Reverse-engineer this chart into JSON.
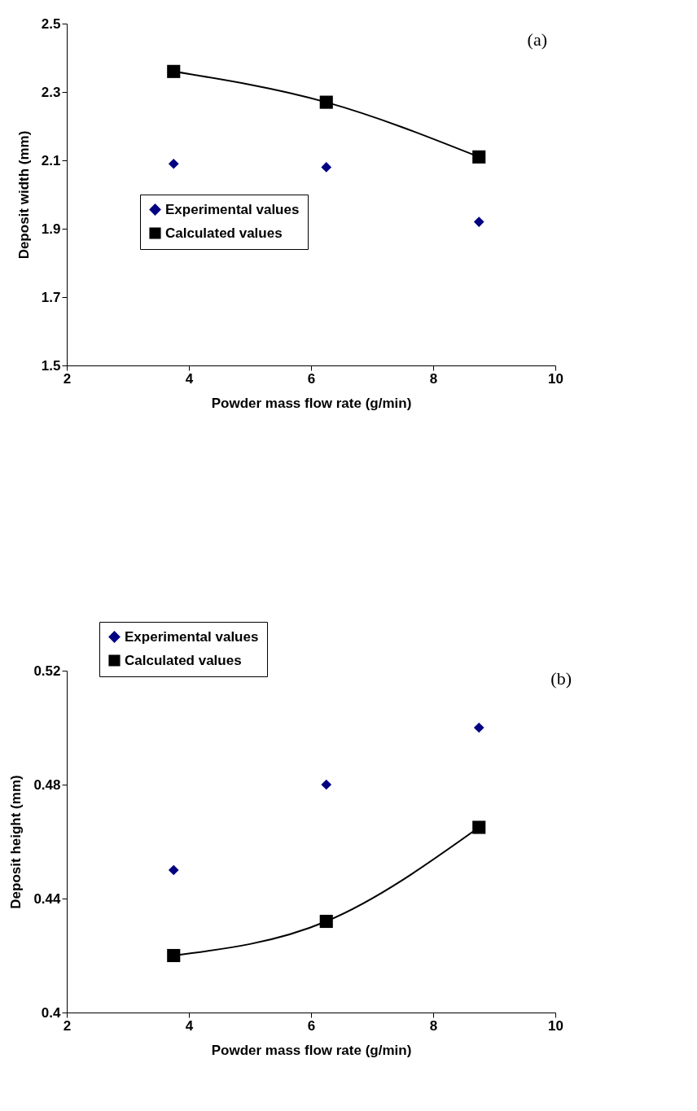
{
  "chart_data": [
    {
      "type": "scatter",
      "xlabel": "Powder mass flow rate (g/min)",
      "ylabel": "Deposit width (mm)",
      "annotations": [
        "(a)"
      ],
      "x": [
        3.75,
        6.25,
        8.75
      ],
      "xlim": [
        2,
        10
      ],
      "xticks": [
        2,
        4,
        6,
        8,
        10
      ],
      "ylim": [
        1.5,
        2.5
      ],
      "yticks": [
        1.5,
        1.7,
        1.9,
        2.1,
        2.3,
        2.5
      ],
      "legend": "left",
      "series": [
        {
          "name": "Experimental values",
          "marker": "diamond",
          "color": "#000080",
          "values": [
            2.09,
            2.08,
            1.92
          ]
        },
        {
          "name": "Calculated values",
          "type": "line",
          "marker": "square",
          "line_style": "solid",
          "color": "#000000",
          "values": [
            2.36,
            2.27,
            2.11
          ]
        }
      ]
    },
    {
      "type": "scatter",
      "xlabel": "Powder mass flow rate (g/min)",
      "ylabel": "Deposit height (mm)",
      "annotations": [
        "(b)"
      ],
      "x": [
        3.75,
        6.25,
        8.75
      ],
      "xlim": [
        2,
        10
      ],
      "xticks": [
        2,
        4,
        6,
        8,
        10
      ],
      "ylim": [
        0.4,
        0.52
      ],
      "yticks": [
        0.4,
        0.44,
        0.48,
        0.52
      ],
      "legend": "top",
      "series": [
        {
          "name": "Experimental values",
          "marker": "diamond",
          "color": "#000080",
          "values": [
            0.45,
            0.48,
            0.5
          ]
        },
        {
          "name": "Calculated values",
          "type": "line",
          "marker": "square",
          "line_style": "solid",
          "color": "#000000",
          "values": [
            0.42,
            0.432,
            0.465
          ]
        }
      ]
    }
  ]
}
